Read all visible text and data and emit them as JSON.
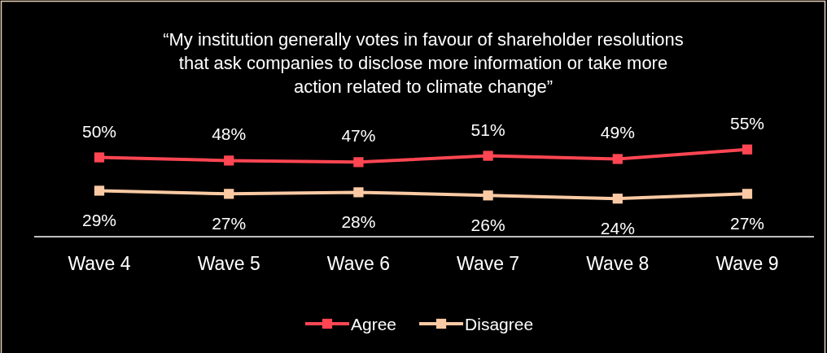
{
  "chart_data": {
    "type": "line",
    "title": "“My institution generally votes in favour of shareholder resolutions\nthat ask companies to disclose more information or take more\naction related to climate change”",
    "categories": [
      "Wave 4",
      "Wave 5",
      "Wave 6",
      "Wave 7",
      "Wave 8",
      "Wave 9"
    ],
    "series": [
      {
        "name": "Agree",
        "color": "#ff4652",
        "values": [
          50,
          48,
          47,
          51,
          49,
          55
        ],
        "value_labels": [
          "50%",
          "48%",
          "47%",
          "51%",
          "49%",
          "55%"
        ]
      },
      {
        "name": "Disagree",
        "color": "#fbcaa4",
        "values": [
          29,
          27,
          28,
          26,
          24,
          27
        ],
        "value_labels": [
          "29%",
          "27%",
          "28%",
          "26%",
          "24%",
          "27%"
        ]
      }
    ],
    "tick_labels": "x",
    "marker": "square",
    "legend": "bottom",
    "grid": false
  }
}
